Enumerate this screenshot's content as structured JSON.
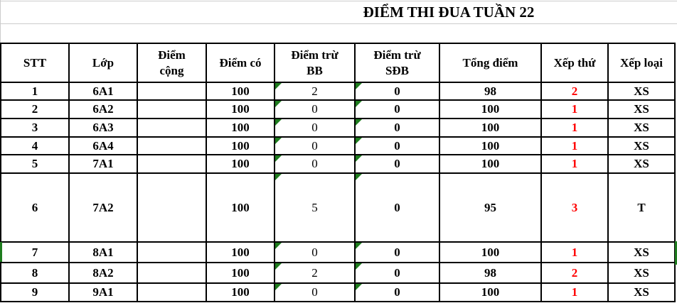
{
  "title": "ĐIỂM THI ĐUA TUẦN 22",
  "table": {
    "columns": [
      "STT",
      "Lớp",
      "Điểm cộng",
      "Điểm có",
      "Điểm trừ BB",
      "Điểm trừ SĐB",
      "Tổng điểm",
      "Xếp thứ",
      "Xếp loại"
    ],
    "rows": [
      [
        "1",
        "6A1",
        "",
        "100",
        "2",
        "0",
        "98",
        "2",
        "XS"
      ],
      [
        "2",
        "6A2",
        "",
        "100",
        "0",
        "0",
        "100",
        "1",
        "XS"
      ],
      [
        "3",
        "6A3",
        "",
        "100",
        "0",
        "0",
        "100",
        "1",
        "XS"
      ],
      [
        "4",
        "6A4",
        "",
        "100",
        "0",
        "0",
        "100",
        "1",
        "XS"
      ],
      [
        "5",
        "7A1",
        "",
        "100",
        "0",
        "0",
        "100",
        "1",
        "XS"
      ],
      [
        "6",
        "7A2",
        "",
        "100",
        "5",
        "0",
        "95",
        "3",
        "T"
      ],
      [
        "7",
        "8A1",
        "",
        "100",
        "0",
        "0",
        "100",
        "1",
        "XS"
      ],
      [
        "8",
        "8A2",
        "",
        "100",
        "2",
        "0",
        "98",
        "2",
        "XS"
      ],
      [
        "9",
        "9A1",
        "",
        "100",
        "0",
        "0",
        "100",
        "1",
        "XS"
      ]
    ]
  },
  "colors": {
    "rank_text": "#ff0000",
    "error_indicator_green": "#1e7c1e",
    "border_black": "#000000",
    "gridline_gray": "#cccccc"
  }
}
